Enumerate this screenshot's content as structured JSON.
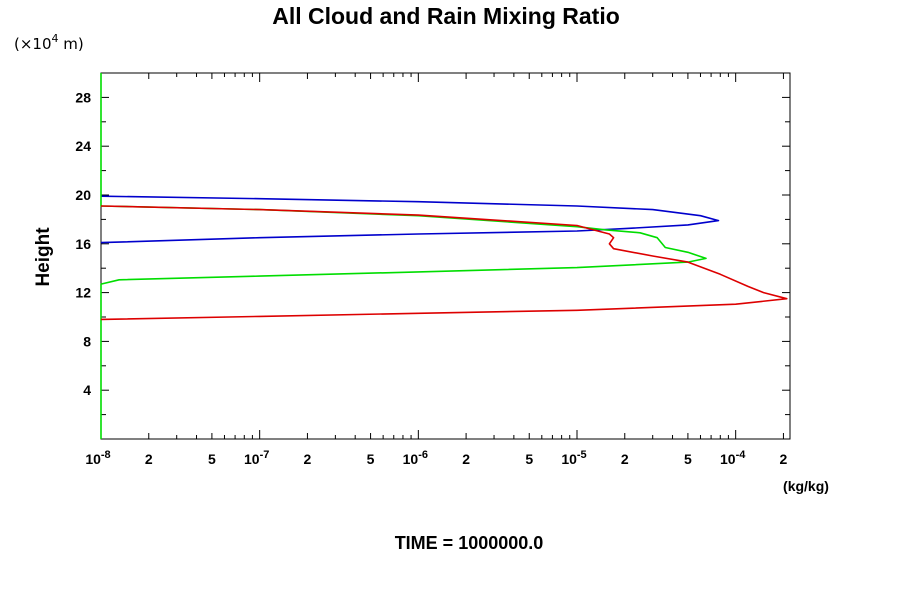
{
  "chart_data": {
    "type": "line",
    "title": "All Cloud and Rain Mixing Ratio",
    "ylabel": "Height",
    "y_unit": "(×10⁴ m)",
    "y_unit_base": "(×10",
    "y_unit_exp": "4",
    "y_unit_tail": " m)",
    "xlabel_unit": "(kg/kg)",
    "footer": "TIME = 1000000.0",
    "x_scale": "log",
    "xlim": [
      1e-08,
      0.00022
    ],
    "ylim": [
      0,
      30
    ],
    "grid": false,
    "y_ticks": [
      {
        "value": 4,
        "label": "4"
      },
      {
        "value": 8,
        "label": "8"
      },
      {
        "value": 12,
        "label": "12"
      },
      {
        "value": 16,
        "label": "16"
      },
      {
        "value": 20,
        "label": "20"
      },
      {
        "value": 24,
        "label": "24"
      },
      {
        "value": 28,
        "label": "28"
      }
    ],
    "x_ticks": [
      {
        "value": 1e-08,
        "base": "10",
        "exp": "-8"
      },
      {
        "value": 2e-08,
        "label": "2"
      },
      {
        "value": 5e-08,
        "label": "5"
      },
      {
        "value": 1e-07,
        "base": "10",
        "exp": "-7"
      },
      {
        "value": 2e-07,
        "label": "2"
      },
      {
        "value": 5e-07,
        "label": "5"
      },
      {
        "value": 1e-06,
        "base": "10",
        "exp": "-6"
      },
      {
        "value": 2e-06,
        "label": "2"
      },
      {
        "value": 5e-06,
        "label": "5"
      },
      {
        "value": 1e-05,
        "base": "10",
        "exp": "-5"
      },
      {
        "value": 2e-05,
        "label": "2"
      },
      {
        "value": 5e-05,
        "label": "5"
      },
      {
        "value": 0.0001,
        "base": "10",
        "exp": "-4"
      },
      {
        "value": 0.0002,
        "label": "2"
      }
    ],
    "series": [
      {
        "color": "#0000cc",
        "points": [
          [
            1e-08,
            19.9
          ],
          [
            1e-07,
            19.7
          ],
          [
            1e-06,
            19.45
          ],
          [
            1e-05,
            19.1
          ],
          [
            3e-05,
            18.8
          ],
          [
            6e-05,
            18.3
          ],
          [
            7.8e-05,
            17.9
          ],
          [
            5e-05,
            17.55
          ],
          [
            2e-05,
            17.25
          ],
          [
            1e-05,
            17.05
          ],
          [
            1e-06,
            16.8
          ],
          [
            1e-07,
            16.5
          ],
          [
            1e-08,
            16.1
          ]
        ]
      },
      {
        "color": "#00dd00",
        "points": [
          [
            1e-08,
            30
          ],
          [
            1e-08,
            19.1
          ],
          [
            1e-07,
            18.8
          ],
          [
            1e-06,
            18.3
          ],
          [
            1e-05,
            17.4
          ],
          [
            1.5e-05,
            17.15
          ],
          [
            2.5e-05,
            16.9
          ],
          [
            3.2e-05,
            16.5
          ],
          [
            3.6e-05,
            15.7
          ],
          [
            5e-05,
            15.3
          ],
          [
            6.5e-05,
            14.8
          ],
          [
            5e-05,
            14.5
          ],
          [
            1e-05,
            14.05
          ],
          [
            1e-06,
            13.7
          ],
          [
            1e-07,
            13.35
          ],
          [
            1.3e-08,
            13.05
          ],
          [
            1e-08,
            12.7
          ],
          [
            1e-08,
            0
          ]
        ]
      },
      {
        "color": "#dd0000",
        "points": [
          [
            1e-08,
            19.1
          ],
          [
            1e-07,
            18.8
          ],
          [
            1e-06,
            18.35
          ],
          [
            1e-05,
            17.5
          ],
          [
            1.4e-05,
            17.0
          ],
          [
            1.6e-05,
            16.8
          ],
          [
            1.7e-05,
            16.5
          ],
          [
            1.6e-05,
            16.0
          ],
          [
            1.7e-05,
            15.6
          ],
          [
            3e-05,
            15.0
          ],
          [
            5e-05,
            14.5
          ],
          [
            8e-05,
            13.5
          ],
          [
            0.00012,
            12.5
          ],
          [
            0.00015,
            12.0
          ],
          [
            0.00021,
            11.5
          ],
          [
            0.0001,
            11.05
          ],
          [
            1e-05,
            10.55
          ],
          [
            1e-06,
            10.3
          ],
          [
            1e-07,
            10.05
          ],
          [
            1e-08,
            9.8
          ]
        ]
      }
    ]
  }
}
